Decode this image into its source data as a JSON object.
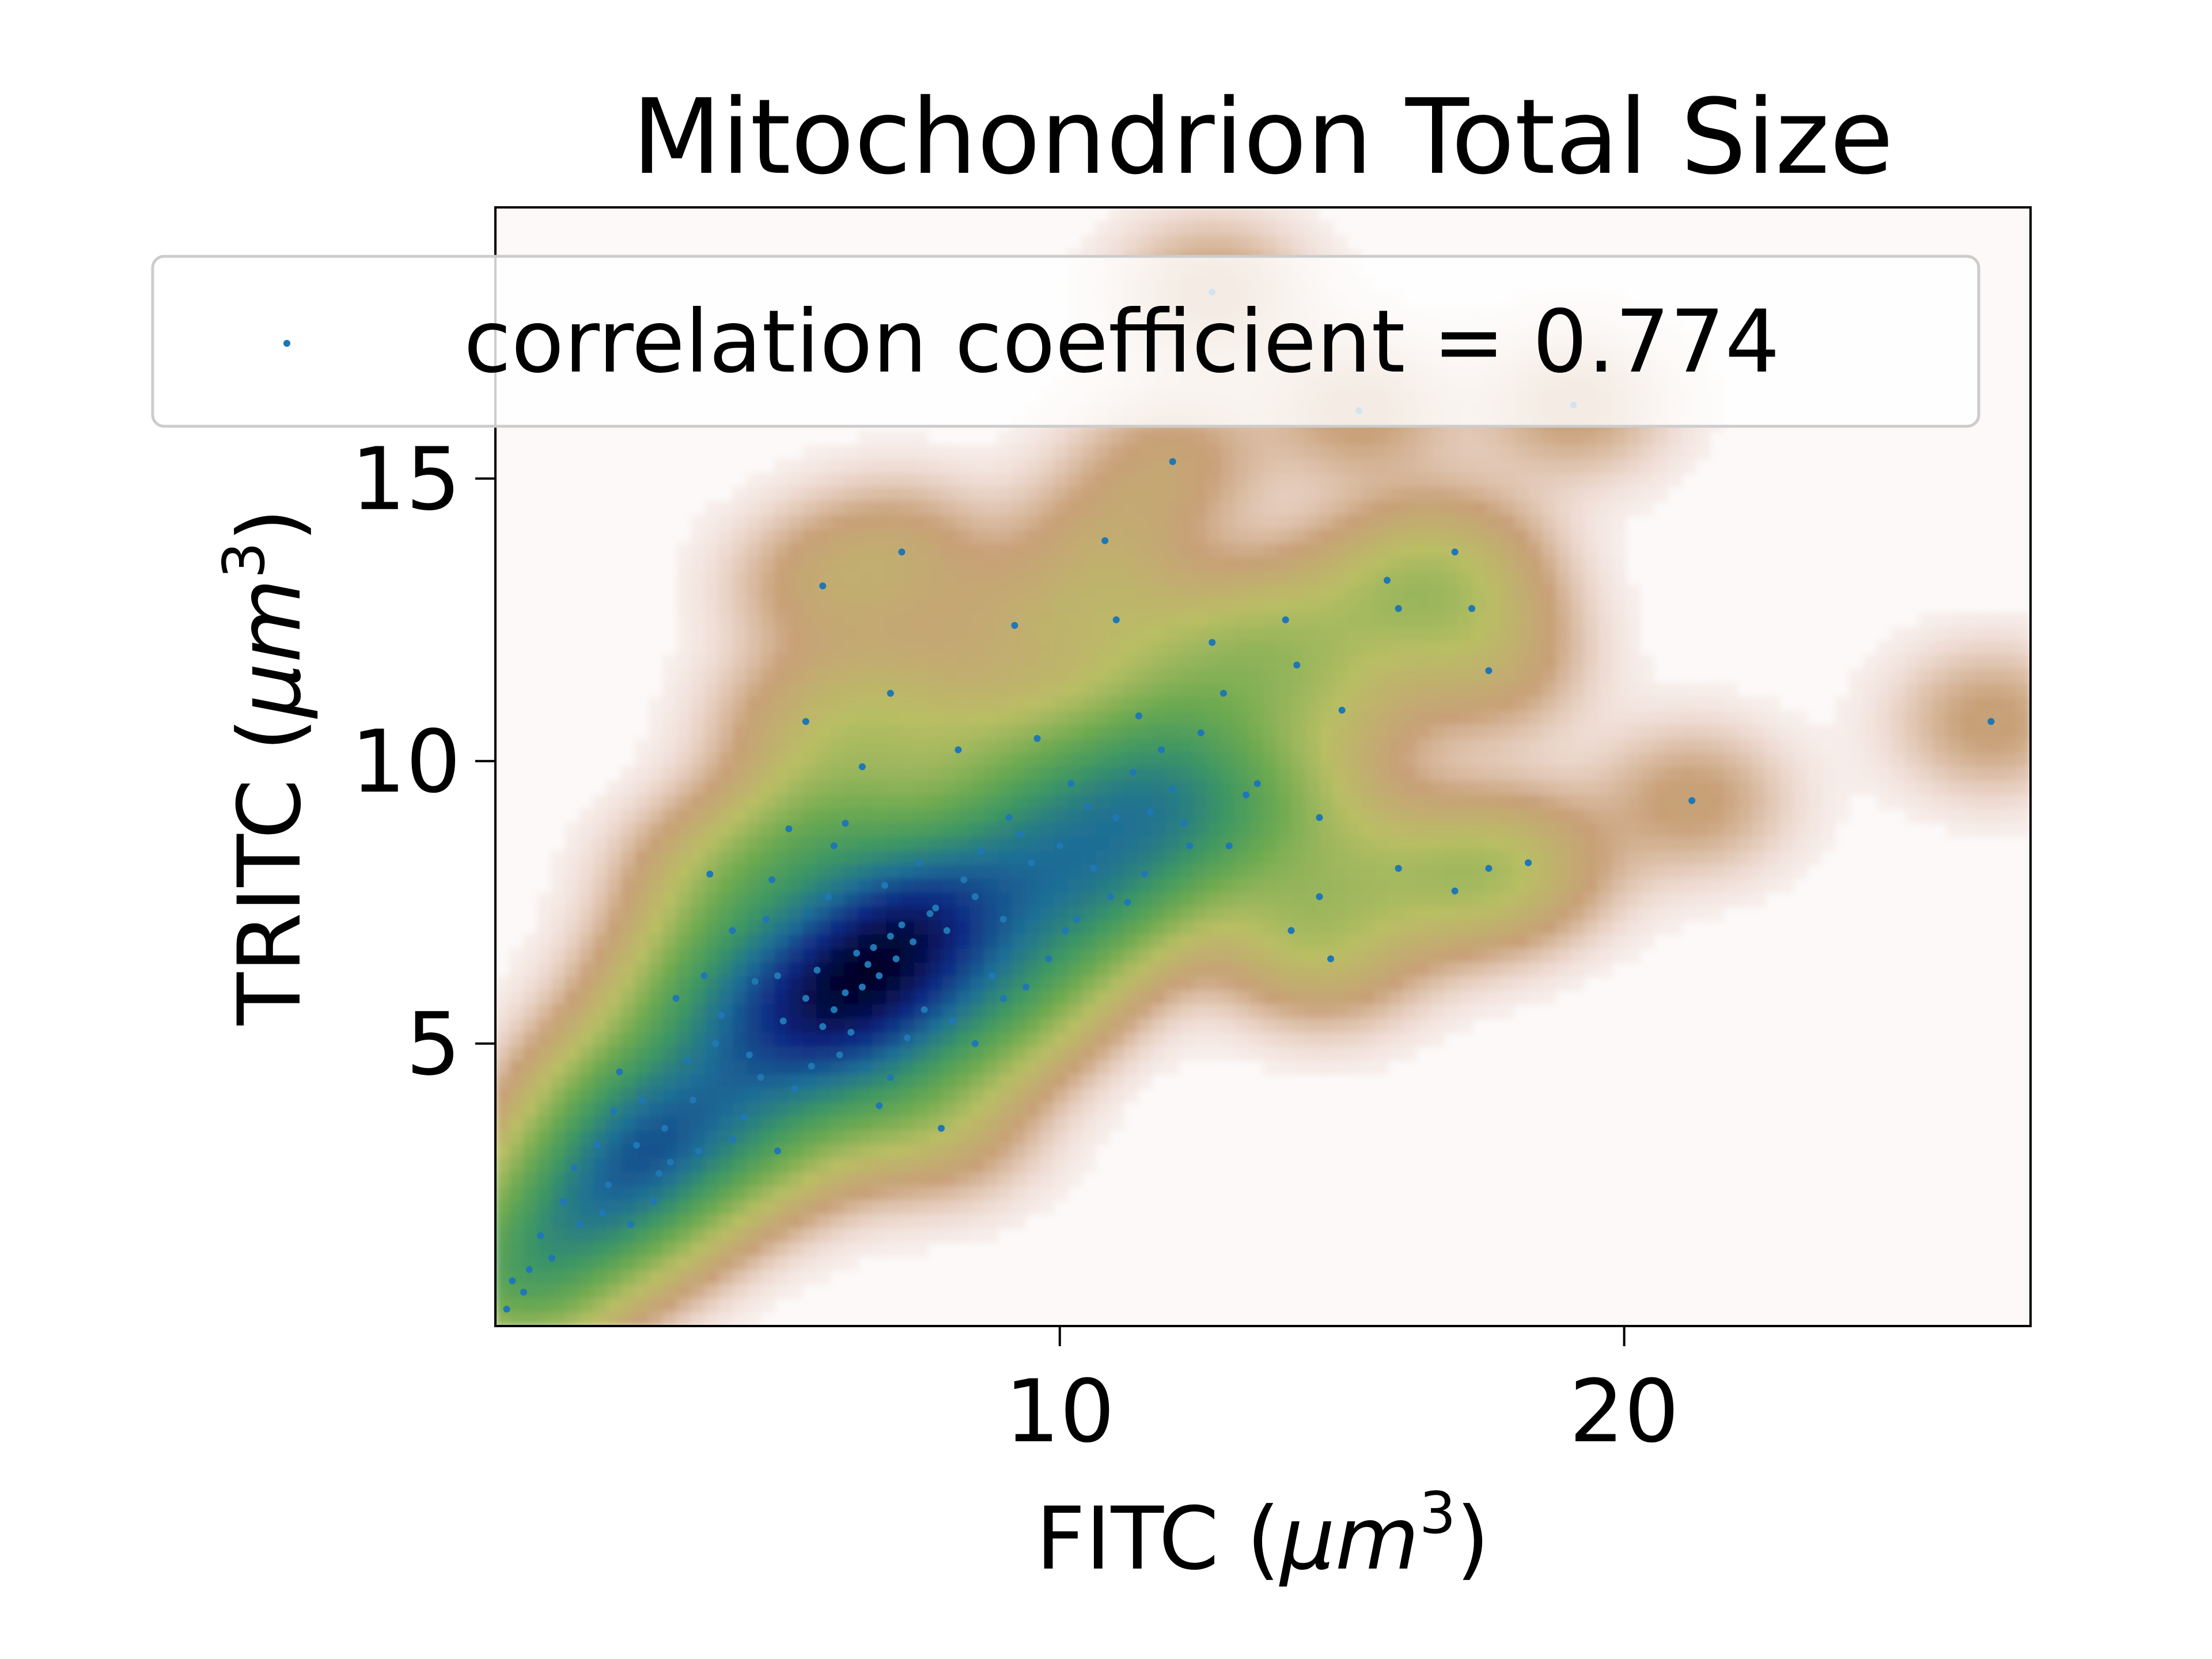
{
  "chart_data": {
    "type": "scatter",
    "title": "Mitochondrion Total Size",
    "xlabel_main": "FITC (",
    "xlabel_italic": "μm",
    "xlabel_sup": "3",
    "xlabel_end": ")",
    "ylabel_main": "TRITC (",
    "ylabel_italic": "μm",
    "ylabel_sup": "3",
    "ylabel_end": ")",
    "xlim": [
      0,
      27.2
    ],
    "ylim": [
      0,
      19.8
    ],
    "xticks": [
      10,
      20
    ],
    "xtick_labels": [
      "10",
      "20"
    ],
    "yticks": [
      5,
      10,
      15
    ],
    "ytick_labels": [
      "5",
      "10",
      "15"
    ],
    "grid": false,
    "legend_placement": "top",
    "legend_label": "correlation coefficient = 0.774",
    "series": [
      {
        "point_color": "#1f77b4",
        "background": "kernel density estimate (gist_earth_r colormap)",
        "points": [
          [
            6.5,
            6.0
          ],
          [
            6.8,
            6.2
          ],
          [
            6.2,
            5.9
          ],
          [
            7.1,
            6.5
          ],
          [
            6.0,
            5.6
          ],
          [
            7.4,
            6.8
          ],
          [
            5.8,
            5.3
          ],
          [
            7.0,
            6.9
          ],
          [
            6.6,
            6.4
          ],
          [
            8.0,
            7.0
          ],
          [
            5.5,
            5.8
          ],
          [
            7.8,
            7.4
          ],
          [
            4.5,
            4.8
          ],
          [
            8.5,
            7.6
          ],
          [
            5.0,
            6.2
          ],
          [
            9.0,
            7.2
          ],
          [
            3.5,
            4.0
          ],
          [
            9.5,
            8.2
          ],
          [
            4.0,
            5.5
          ],
          [
            10.0,
            8.5
          ],
          [
            2.0,
            2.5
          ],
          [
            1.5,
            1.8
          ],
          [
            1.0,
            1.2
          ],
          [
            0.5,
            0.6
          ],
          [
            0.2,
            0.3
          ],
          [
            2.5,
            3.2
          ],
          [
            3.0,
            3.5
          ],
          [
            11.0,
            9.0
          ],
          [
            12.0,
            9.5
          ],
          [
            12.5,
            10.5
          ],
          [
            13.0,
            8.5
          ],
          [
            10.5,
            9.2
          ],
          [
            11.5,
            8.0
          ],
          [
            6.0,
            8.5
          ],
          [
            5.5,
            10.7
          ],
          [
            7.0,
            11.2
          ],
          [
            5.8,
            13.1
          ],
          [
            7.2,
            13.7
          ],
          [
            9.2,
            12.4
          ],
          [
            10.8,
            13.9
          ],
          [
            11.0,
            12.5
          ],
          [
            12.0,
            15.3
          ],
          [
            12.7,
            12.1
          ],
          [
            14.0,
            12.5
          ],
          [
            14.2,
            11.7
          ],
          [
            15.0,
            10.9
          ],
          [
            16.0,
            12.7
          ],
          [
            15.8,
            13.2
          ],
          [
            17.0,
            13.7
          ],
          [
            17.3,
            12.7
          ],
          [
            17.6,
            11.6
          ],
          [
            14.6,
            7.6
          ],
          [
            14.8,
            6.5
          ],
          [
            14.1,
            7.0
          ],
          [
            14.6,
            9.0
          ],
          [
            16.0,
            8.1
          ],
          [
            17.0,
            7.7
          ],
          [
            17.6,
            8.1
          ],
          [
            18.3,
            8.2
          ],
          [
            21.2,
            9.3
          ],
          [
            26.5,
            10.7
          ],
          [
            19.1,
            16.3
          ],
          [
            15.3,
            16.2
          ],
          [
            12.7,
            18.3
          ],
          [
            7.0,
            4.4
          ],
          [
            7.9,
            3.5
          ],
          [
            6.8,
            3.9
          ],
          [
            5.0,
            3.1
          ],
          [
            4.2,
            3.3
          ],
          [
            2.8,
            2.2
          ],
          [
            8.5,
            5.0
          ],
          [
            9.0,
            5.8
          ],
          [
            9.8,
            6.5
          ],
          [
            10.3,
            7.2
          ],
          [
            11.2,
            7.5
          ],
          [
            12.3,
            8.5
          ],
          [
            4.8,
            7.2
          ],
          [
            3.8,
            8.0
          ],
          [
            4.2,
            7.0
          ],
          [
            5.2,
            8.8
          ],
          [
            6.5,
            9.9
          ],
          [
            8.2,
            10.2
          ],
          [
            9.6,
            10.4
          ],
          [
            11.8,
            10.2
          ],
          [
            13.5,
            9.6
          ],
          [
            12.9,
            11.2
          ],
          [
            11.4,
            10.8
          ],
          [
            3.2,
            5.8
          ],
          [
            2.2,
            4.5
          ],
          [
            1.8,
            3.2
          ],
          [
            1.2,
            2.2
          ],
          [
            0.8,
            1.6
          ],
          [
            2.6,
            4.0
          ],
          [
            3.4,
            4.7
          ],
          [
            5.6,
            4.6
          ],
          [
            6.3,
            5.2
          ],
          [
            7.6,
            5.6
          ],
          [
            8.8,
            6.2
          ],
          [
            10.1,
            7.0
          ],
          [
            6.9,
            7.8
          ],
          [
            7.5,
            8.2
          ],
          [
            5.9,
            7.6
          ],
          [
            4.6,
            6.1
          ],
          [
            3.9,
            5.0
          ],
          [
            8.3,
            7.9
          ],
          [
            9.3,
            8.7
          ],
          [
            10.6,
            8.1
          ],
          [
            11.6,
            9.1
          ],
          [
            2.9,
            2.7
          ],
          [
            3.6,
            3.1
          ],
          [
            4.4,
            3.7
          ],
          [
            5.3,
            4.2
          ],
          [
            6.1,
            4.8
          ],
          [
            7.3,
            5.1
          ],
          [
            8.1,
            5.4
          ],
          [
            9.4,
            6.0
          ],
          [
            10.9,
            7.6
          ],
          [
            12.2,
            8.9
          ],
          [
            13.3,
            9.4
          ],
          [
            6.7,
            6.7
          ],
          [
            7.2,
            7.1
          ],
          [
            6.4,
            6.6
          ],
          [
            5.7,
            6.3
          ],
          [
            5.1,
            5.4
          ],
          [
            4.7,
            4.4
          ],
          [
            7.7,
            7.3
          ],
          [
            8.6,
            8.4
          ],
          [
            9.1,
            9.0
          ],
          [
            10.2,
            9.6
          ],
          [
            11.3,
            9.8
          ],
          [
            1.4,
            2.8
          ],
          [
            0.6,
            1.0
          ],
          [
            0.3,
            0.8
          ],
          [
            1.9,
            2.0
          ],
          [
            2.4,
            1.8
          ],
          [
            3.1,
            2.9
          ],
          [
            2.1,
            3.8
          ],
          [
            3.7,
            6.2
          ],
          [
            4.9,
            7.9
          ],
          [
            6.2,
            8.9
          ]
        ]
      }
    ]
  }
}
